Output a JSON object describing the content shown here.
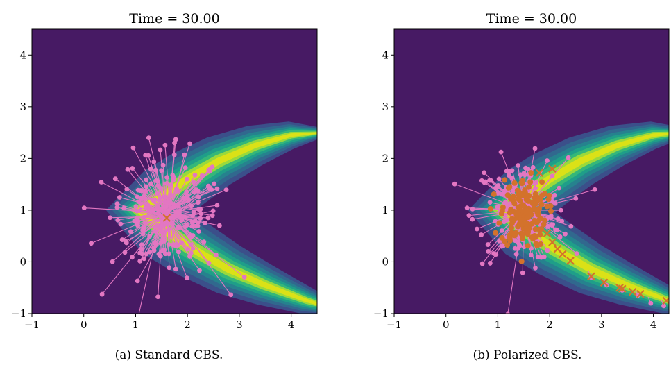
{
  "chart_data": [
    {
      "type": "contour",
      "title": "Time = 30.00",
      "caption": "(a) Standard CBS.",
      "xlim": [
        -1,
        4.5
      ],
      "ylim": [
        -1,
        4.5
      ],
      "xticks": [
        "−1",
        "0",
        "1",
        "2",
        "3",
        "4"
      ],
      "yticks": [
        "−1",
        "0",
        "1",
        "2",
        "3",
        "4"
      ],
      "colors": {
        "background": "#471a64",
        "levels": [
          "#3b4f8a",
          "#31688e",
          "#26828e",
          "#1f9e89",
          "#35b779",
          "#9ad93c",
          "#dbe117"
        ],
        "particles": "#e377c2",
        "consensus": "#d3722c"
      },
      "consensus": [
        [
          1.6,
          0.85
        ]
      ]
    },
    {
      "type": "contour",
      "title": "Time = 30.00",
      "caption": "(b) Polarized CBS.",
      "xlim": [
        -1,
        4.3
      ],
      "ylim": [
        -1,
        4.5
      ],
      "xticks": [
        "−1",
        "0",
        "1",
        "2",
        "3",
        "4"
      ],
      "yticks": [
        "−1",
        "0",
        "1",
        "2",
        "3",
        "4"
      ],
      "colors": {
        "background": "#471a64",
        "levels": [
          "#3b4f8a",
          "#31688e",
          "#26828e",
          "#1f9e89",
          "#35b779",
          "#9ad93c",
          "#dbe117"
        ],
        "particles": "#e377c2",
        "consensus": "#d3722c"
      },
      "consensus": [
        [
          1.8,
          1.72
        ],
        [
          2.05,
          1.8
        ],
        [
          1.95,
          0.55
        ],
        [
          2.05,
          0.38
        ],
        [
          2.15,
          0.25
        ],
        [
          2.25,
          0.15
        ],
        [
          2.4,
          0.02
        ],
        [
          2.8,
          -0.28
        ],
        [
          3.05,
          -0.4
        ],
        [
          3.35,
          -0.5
        ],
        [
          3.4,
          -0.52
        ],
        [
          3.6,
          -0.58
        ],
        [
          3.75,
          -0.62
        ],
        [
          4.25,
          -0.75
        ]
      ]
    }
  ]
}
